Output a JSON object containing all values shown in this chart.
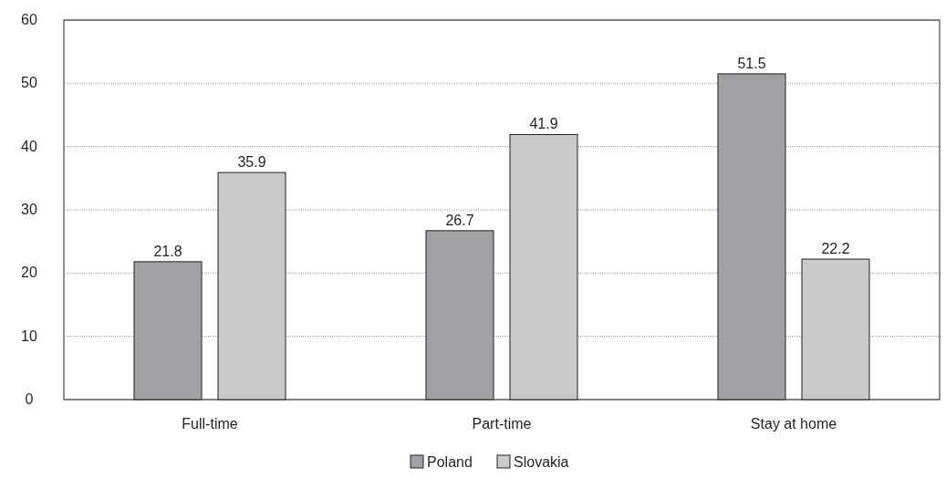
{
  "chart_data": {
    "type": "bar",
    "categories": [
      "Full-time",
      "Part-time",
      "Stay at home"
    ],
    "series": [
      {
        "name": "Poland",
        "color": "#a0a1a4",
        "values": [
          21.8,
          26.7,
          51.5
        ]
      },
      {
        "name": "Slovakia",
        "color": "#c8c9cb",
        "values": [
          35.9,
          41.9,
          22.2
        ]
      }
    ],
    "ylim": [
      0,
      60
    ],
    "yticks": [
      0,
      10,
      20,
      30,
      40,
      50,
      60
    ],
    "grid": "y",
    "legend": "bottom",
    "data_labels": true
  }
}
